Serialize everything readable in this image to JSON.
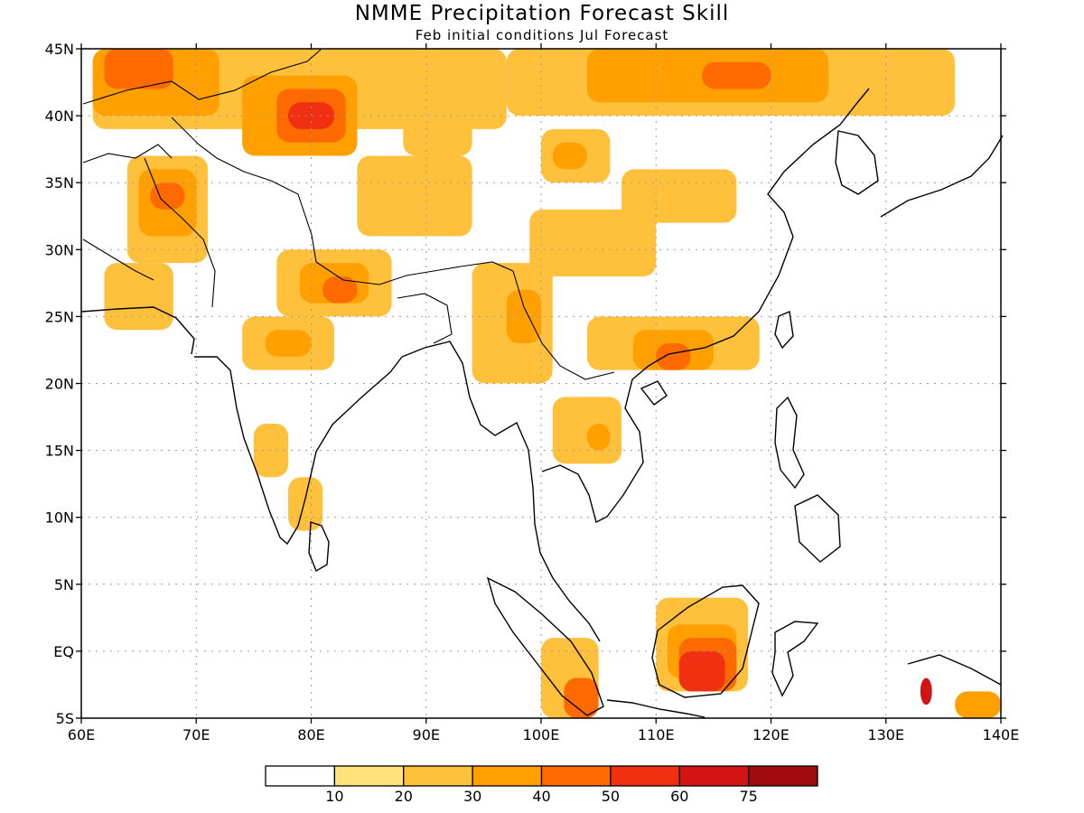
{
  "title": "NMME Precipitation Forecast Skill",
  "subtitle": "Feb initial conditions  Jul Forecast",
  "map": {
    "lon_range": [
      60,
      140
    ],
    "lat_range": [
      -5,
      45
    ],
    "lon_ticks": [
      {
        "value": 60,
        "label": "60E"
      },
      {
        "value": 70,
        "label": "70E"
      },
      {
        "value": 80,
        "label": "80E"
      },
      {
        "value": 90,
        "label": "90E"
      },
      {
        "value": 100,
        "label": "100E"
      },
      {
        "value": 110,
        "label": "110E"
      },
      {
        "value": 120,
        "label": "120E"
      },
      {
        "value": 130,
        "label": "130E"
      },
      {
        "value": 140,
        "label": "140E"
      }
    ],
    "lat_ticks": [
      {
        "value": 45,
        "label": "45N"
      },
      {
        "value": 40,
        "label": "40N"
      },
      {
        "value": 35,
        "label": "35N"
      },
      {
        "value": 30,
        "label": "30N"
      },
      {
        "value": 25,
        "label": "25N"
      },
      {
        "value": 20,
        "label": "20N"
      },
      {
        "value": 15,
        "label": "15N"
      },
      {
        "value": 10,
        "label": "10N"
      },
      {
        "value": 5,
        "label": "5N"
      },
      {
        "value": 0,
        "label": "EQ"
      },
      {
        "value": -5,
        "label": "5S"
      }
    ],
    "grid": true
  },
  "colorbar": {
    "bins": [
      {
        "color": "#ffffff"
      },
      {
        "color": "#ffe27a"
      },
      {
        "color": "#ffc03c"
      },
      {
        "color": "#ffa000"
      },
      {
        "color": "#ff6a00"
      },
      {
        "color": "#f03010"
      },
      {
        "color": "#d21414"
      },
      {
        "color": "#a00a0a"
      }
    ],
    "labels": [
      "10",
      "20",
      "30",
      "40",
      "50",
      "60",
      "75"
    ]
  },
  "skill_regions": [
    {
      "level": 2,
      "lon": [
        61,
        97
      ],
      "lat": [
        39,
        45
      ]
    },
    {
      "level": 3,
      "lon": [
        61,
        72
      ],
      "lat": [
        40,
        45
      ]
    },
    {
      "level": 4,
      "lon": [
        62,
        68
      ],
      "lat": [
        42,
        45
      ]
    },
    {
      "level": 3,
      "lon": [
        74,
        84
      ],
      "lat": [
        37,
        43
      ]
    },
    {
      "level": 4,
      "lon": [
        77,
        83
      ],
      "lat": [
        38,
        42
      ]
    },
    {
      "level": 5,
      "lon": [
        78,
        82
      ],
      "lat": [
        39,
        41
      ]
    },
    {
      "level": 2,
      "lon": [
        97,
        136
      ],
      "lat": [
        40,
        45
      ]
    },
    {
      "level": 3,
      "lon": [
        104,
        125
      ],
      "lat": [
        41,
        45
      ]
    },
    {
      "level": 4,
      "lon": [
        114,
        120
      ],
      "lat": [
        42,
        44
      ]
    },
    {
      "level": 2,
      "lon": [
        64,
        71
      ],
      "lat": [
        29,
        37
      ]
    },
    {
      "level": 3,
      "lon": [
        65,
        70
      ],
      "lat": [
        31,
        36
      ]
    },
    {
      "level": 4,
      "lon": [
        66,
        69
      ],
      "lat": [
        33,
        35
      ]
    },
    {
      "level": 2,
      "lon": [
        62,
        68
      ],
      "lat": [
        24,
        29
      ]
    },
    {
      "level": 2,
      "lon": [
        84,
        94
      ],
      "lat": [
        31,
        37
      ]
    },
    {
      "level": 2,
      "lon": [
        88,
        94
      ],
      "lat": [
        37,
        40
      ]
    },
    {
      "level": 2,
      "lon": [
        100,
        106
      ],
      "lat": [
        35,
        39
      ]
    },
    {
      "level": 3,
      "lon": [
        101,
        104
      ],
      "lat": [
        36,
        38
      ]
    },
    {
      "level": 2,
      "lon": [
        107,
        117
      ],
      "lat": [
        32,
        36
      ]
    },
    {
      "level": 2,
      "lon": [
        99,
        110
      ],
      "lat": [
        28,
        33
      ]
    },
    {
      "level": 2,
      "lon": [
        77,
        87
      ],
      "lat": [
        25,
        30
      ]
    },
    {
      "level": 3,
      "lon": [
        79,
        85
      ],
      "lat": [
        26,
        29
      ]
    },
    {
      "level": 4,
      "lon": [
        81,
        84
      ],
      "lat": [
        26,
        28
      ]
    },
    {
      "level": 2,
      "lon": [
        74,
        82
      ],
      "lat": [
        21,
        25
      ]
    },
    {
      "level": 3,
      "lon": [
        76,
        80
      ],
      "lat": [
        22,
        24
      ]
    },
    {
      "level": 2,
      "lon": [
        75,
        78
      ],
      "lat": [
        13,
        17
      ]
    },
    {
      "level": 2,
      "lon": [
        78,
        81
      ],
      "lat": [
        9,
        13
      ]
    },
    {
      "level": 2,
      "lon": [
        94,
        101
      ],
      "lat": [
        20,
        29
      ]
    },
    {
      "level": 3,
      "lon": [
        97,
        100
      ],
      "lat": [
        23,
        27
      ]
    },
    {
      "level": 2,
      "lon": [
        104,
        119
      ],
      "lat": [
        21,
        25
      ]
    },
    {
      "level": 3,
      "lon": [
        108,
        115
      ],
      "lat": [
        21,
        24
      ]
    },
    {
      "level": 4,
      "lon": [
        110,
        113
      ],
      "lat": [
        21,
        23
      ]
    },
    {
      "level": 2,
      "lon": [
        101,
        107
      ],
      "lat": [
        14,
        19
      ]
    },
    {
      "level": 3,
      "lon": [
        104,
        106
      ],
      "lat": [
        15,
        17
      ]
    },
    {
      "level": 2,
      "lon": [
        110,
        118
      ],
      "lat": [
        -3,
        4
      ]
    },
    {
      "level": 3,
      "lon": [
        111,
        117
      ],
      "lat": [
        -2,
        2
      ]
    },
    {
      "level": 4,
      "lon": [
        112,
        117
      ],
      "lat": [
        -3,
        1
      ]
    },
    {
      "level": 5,
      "lon": [
        112,
        116
      ],
      "lat": [
        -3,
        0
      ]
    },
    {
      "level": 2,
      "lon": [
        100,
        105
      ],
      "lat": [
        -5,
        1
      ]
    },
    {
      "level": 4,
      "lon": [
        102,
        105
      ],
      "lat": [
        -5,
        -2
      ]
    },
    {
      "level": 6,
      "lon": [
        133,
        134
      ],
      "lat": [
        -4,
        -2
      ]
    },
    {
      "level": 3,
      "lon": [
        136,
        140
      ],
      "lat": [
        -5,
        -3
      ]
    }
  ]
}
